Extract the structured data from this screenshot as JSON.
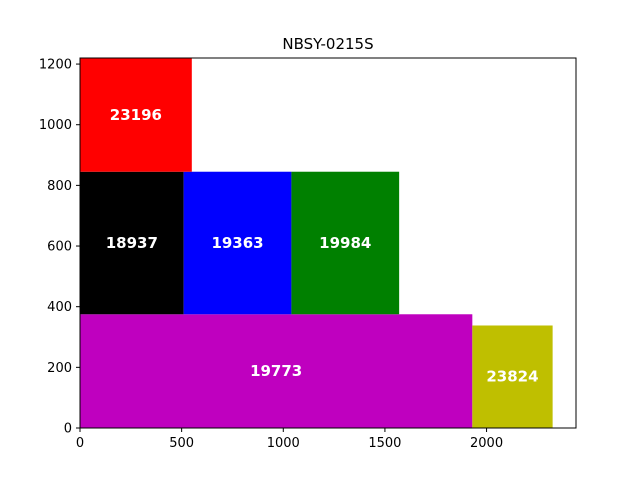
{
  "chart_data": {
    "type": "bar",
    "subtype": "rectangle-packing",
    "title": "NBSY-0215S",
    "xlabel": "",
    "ylabel": "",
    "xlim": [
      0,
      2440
    ],
    "ylim": [
      0,
      1220
    ],
    "xticks": [
      0,
      500,
      1000,
      1500,
      2000
    ],
    "yticks": [
      0,
      200,
      400,
      600,
      800,
      1000,
      1200
    ],
    "grid": false,
    "legend": "none",
    "rects": [
      {
        "label": "19773",
        "x0": 0,
        "y0": 0,
        "x1": 1930,
        "y1": 375,
        "color": "#bf00bf"
      },
      {
        "label": "23824",
        "x0": 1930,
        "y0": 0,
        "x1": 2325,
        "y1": 338,
        "color": "#bfbf00"
      },
      {
        "label": "18937",
        "x0": 0,
        "y0": 375,
        "x1": 510,
        "y1": 845,
        "color": "#000000"
      },
      {
        "label": "19363",
        "x0": 510,
        "y0": 375,
        "x1": 1040,
        "y1": 845,
        "color": "#0000ff"
      },
      {
        "label": "19984",
        "x0": 1040,
        "y0": 375,
        "x1": 1570,
        "y1": 845,
        "color": "#008000"
      },
      {
        "label": "23196",
        "x0": 0,
        "y0": 845,
        "x1": 550,
        "y1": 1220,
        "color": "#ff0000"
      }
    ]
  }
}
